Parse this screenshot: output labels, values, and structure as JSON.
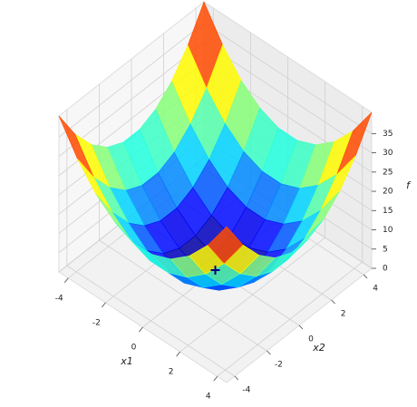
{
  "chart_data": {
    "type": "surface",
    "x_label": "x1",
    "y_label": "x2",
    "z_label": "f",
    "x": [
      -4.5,
      -3.5,
      -2.5,
      -1.5,
      -0.5,
      0.5,
      1.5,
      2.5,
      3.5,
      4.5
    ],
    "y": [
      -4.5,
      -3.5,
      -2.5,
      -1.5,
      -0.5,
      0.5,
      1.5,
      2.5,
      3.5,
      4.5
    ],
    "z": [
      [
        40.5,
        32.5,
        26.5,
        22.5,
        20.5,
        20.5,
        22.5,
        26.5,
        32.5,
        40.5
      ],
      [
        32.5,
        24.5,
        18.5,
        14.5,
        12.5,
        12.5,
        14.5,
        18.5,
        24.5,
        32.5
      ],
      [
        26.5,
        18.5,
        12.5,
        8.5,
        6.5,
        6.5,
        8.5,
        12.5,
        18.5,
        26.5
      ],
      [
        22.5,
        14.5,
        8.5,
        4.5,
        2.5,
        2.5,
        4.5,
        8.5,
        14.5,
        22.5
      ],
      [
        20.5,
        12.5,
        6.5,
        2.5,
        0.5,
        0.5,
        2.5,
        6.5,
        12.5,
        20.5
      ],
      [
        20.5,
        12.5,
        6.5,
        2.5,
        0.5,
        0.5,
        2.5,
        6.5,
        12.5,
        20.5
      ],
      [
        22.5,
        14.5,
        8.5,
        4.5,
        2.5,
        2.5,
        4.5,
        8.5,
        14.5,
        22.5
      ],
      [
        26.5,
        18.5,
        12.5,
        8.5,
        6.5,
        6.5,
        8.5,
        12.5,
        18.5,
        26.5
      ],
      [
        32.5,
        24.5,
        18.5,
        14.5,
        12.5,
        12.5,
        14.5,
        18.5,
        24.5,
        32.5
      ],
      [
        40.5,
        32.5,
        26.5,
        22.5,
        20.5,
        20.5,
        22.5,
        26.5,
        32.5,
        40.5
      ]
    ],
    "colormap": "jet",
    "minimum": {
      "x": 0,
      "y": 0,
      "z": 0,
      "color": "#000080"
    },
    "xlim": [
      -4.5,
      4.5
    ],
    "ylim": [
      -4.5,
      4.5
    ],
    "zlim": [
      0,
      40.5
    ],
    "xticks": [
      -4,
      -2,
      0,
      2,
      4
    ],
    "yticks": [
      -4,
      -2,
      0,
      2,
      4
    ],
    "zticks": [
      0,
      5,
      10,
      15,
      20,
      25,
      30,
      35
    ],
    "grid": true
  }
}
